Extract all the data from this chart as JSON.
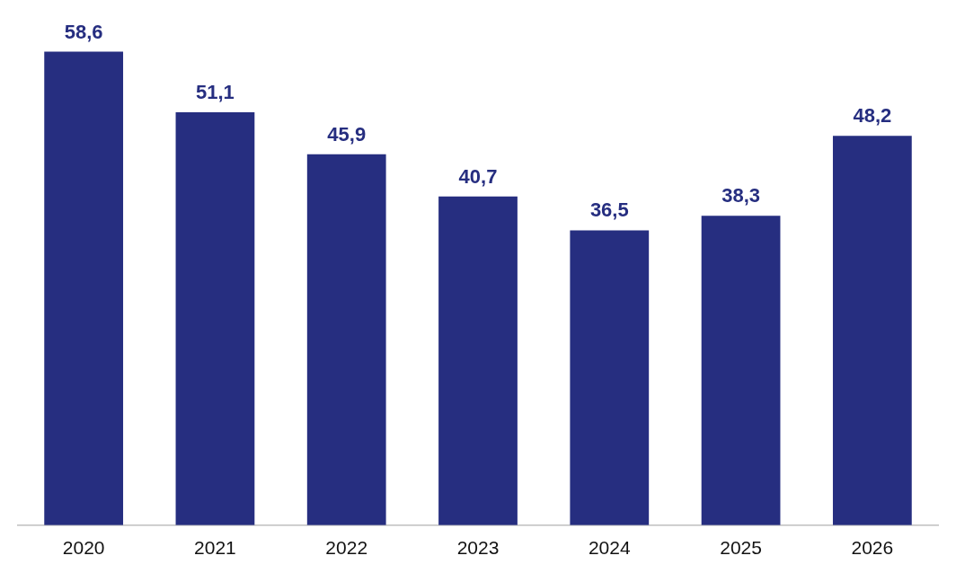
{
  "chart_data": {
    "type": "bar",
    "categories": [
      "2020",
      "2021",
      "2022",
      "2023",
      "2024",
      "2025",
      "2026"
    ],
    "values": [
      58.6,
      51.1,
      45.9,
      40.7,
      36.5,
      38.3,
      48.2
    ],
    "color": "#262e80",
    "value_labels": [
      "58,6",
      "51,1",
      "45,9",
      "40,7",
      "36,5",
      "38,3",
      "48,2"
    ],
    "grid": false,
    "legend": false,
    "tick_labels": "x"
  }
}
